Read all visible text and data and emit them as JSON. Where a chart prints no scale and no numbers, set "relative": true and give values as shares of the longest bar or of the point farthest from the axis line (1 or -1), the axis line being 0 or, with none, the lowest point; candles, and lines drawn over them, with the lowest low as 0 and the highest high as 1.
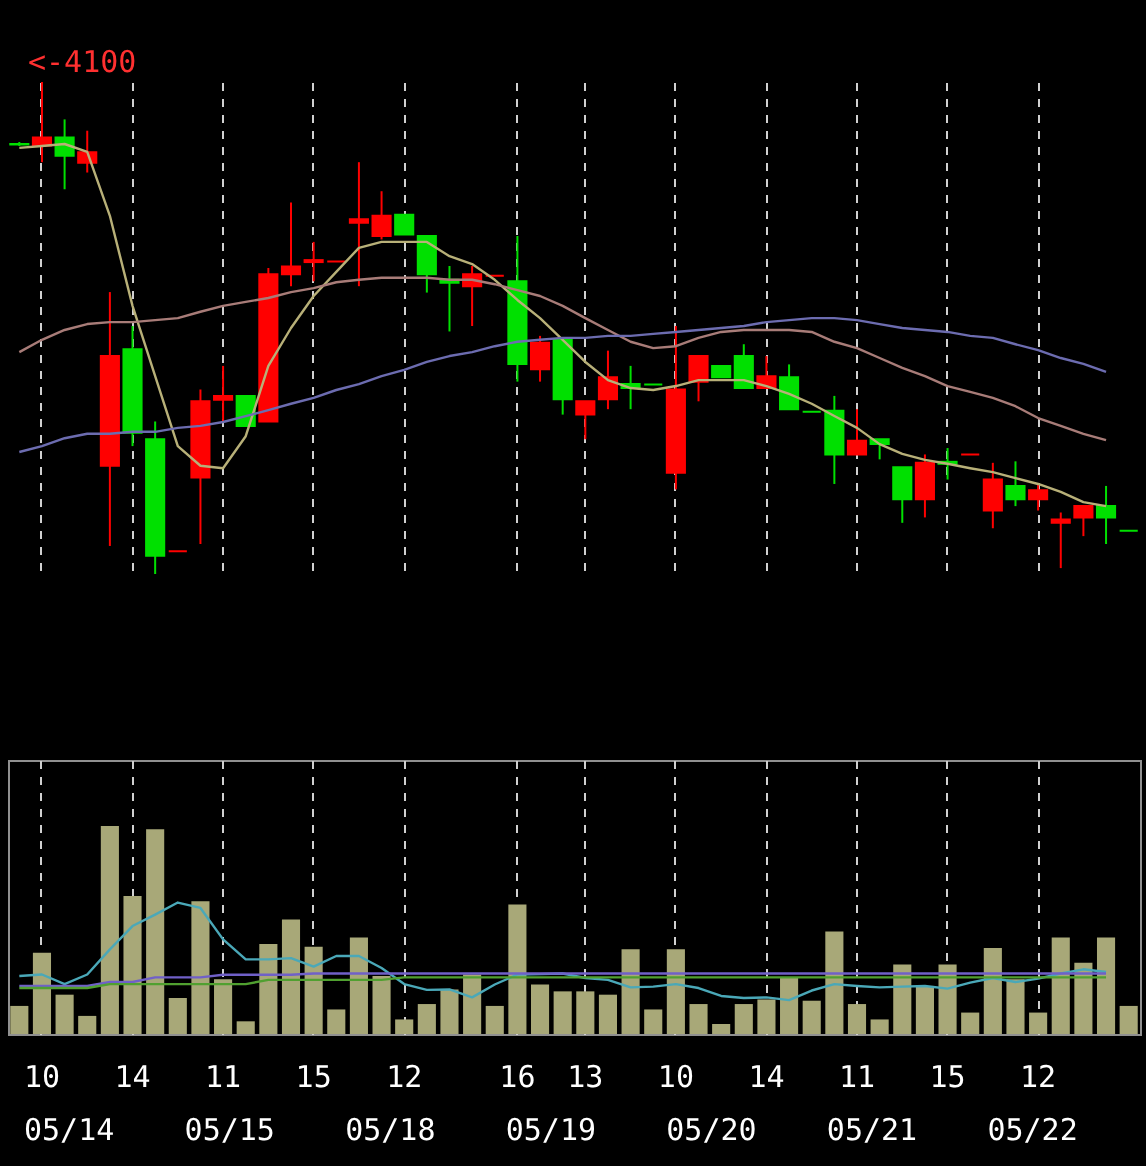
{
  "chart_data": [
    {
      "type": "candlestick",
      "relative": true,
      "grid": "x",
      "tick_labels": false,
      "categories": [
        null,
        "10",
        null,
        null,
        null,
        "14",
        null,
        null,
        null,
        "11",
        null,
        null,
        null,
        "15",
        null,
        null,
        null,
        "12",
        null,
        null,
        null,
        null,
        "16",
        null,
        null,
        "13",
        null,
        null,
        null,
        "10",
        null,
        null,
        null,
        "14",
        null,
        null,
        null,
        "11",
        null,
        null,
        null,
        "15",
        null,
        null,
        null,
        "12",
        null,
        null,
        null,
        null
      ],
      "ohlc": [
        [
          0.873,
          0.878,
          0.87,
          0.874
        ],
        [
          0.871,
          1,
          0.837,
          0.887
        ],
        [
          0.887,
          0.924,
          0.782,
          0.85
        ],
        [
          0.836,
          0.901,
          0.816,
          0.857
        ],
        [
          0.22,
          0.573,
          0.057,
          0.443
        ],
        [
          0.457,
          0.504,
          0.26,
          0.287
        ],
        [
          0.274,
          0.31,
          0,
          0.037
        ],
        [
          0.046,
          0.046,
          0.046,
          0.046
        ],
        [
          0.196,
          0.375,
          0.061,
          0.351
        ],
        [
          0.354,
          0.423,
          0.31,
          0.362
        ],
        [
          0.362,
          0.362,
          0.301,
          0.301
        ],
        [
          0.31,
          0.622,
          0.31,
          0.609
        ],
        [
          0.609,
          0.755,
          0.585,
          0.625
        ],
        [
          0.634,
          0.675,
          0.595,
          0.638
        ],
        [
          0.635,
          0.635,
          0.635,
          0.635
        ],
        [
          0.714,
          0.837,
          0.585,
          0.721
        ],
        [
          0.687,
          0.778,
          0.68,
          0.728
        ],
        [
          0.73,
          0.73,
          0.69,
          0.69
        ],
        [
          0.687,
          0.687,
          0.572,
          0.609
        ],
        [
          0.598,
          0.626,
          0.493,
          0.592
        ],
        [
          0.585,
          0.626,
          0.504,
          0.609
        ],
        [
          0.606,
          0.606,
          0.606,
          0.606
        ],
        [
          0.595,
          0.687,
          0.391,
          0.427
        ],
        [
          0.416,
          0.484,
          0.391,
          0.47
        ],
        [
          0.477,
          0.477,
          0.324,
          0.355
        ],
        [
          0.324,
          0.351,
          0.274,
          0.351
        ],
        [
          0.355,
          0.454,
          0.335,
          0.4
        ],
        [
          0.386,
          0.423,
          0.335,
          0.378
        ],
        [
          0.385,
          0.385,
          0.385,
          0.385
        ],
        [
          0.206,
          0.504,
          0.172,
          0.375
        ],
        [
          0.391,
          0.443,
          0.351,
          0.443
        ],
        [
          0.423,
          0.423,
          0.4,
          0.4
        ],
        [
          0.443,
          0.467,
          0.378,
          0.378
        ],
        [
          0.378,
          0.443,
          0.378,
          0.402
        ],
        [
          0.4,
          0.426,
          0.335,
          0.335
        ],
        [
          0.33,
          0.33,
          0.33,
          0.33
        ],
        [
          0.332,
          0.362,
          0.183,
          0.243
        ],
        [
          0.243,
          0.335,
          0.243,
          0.271
        ],
        [
          0.274,
          0.274,
          0.233,
          0.264
        ],
        [
          0.217,
          0.217,
          0.104,
          0.152
        ],
        [
          0.152,
          0.243,
          0.115,
          0.226
        ],
        [
          0.228,
          0.256,
          0.192,
          0.224
        ],
        [
          0.243,
          0.243,
          0.243,
          0.243
        ],
        [
          0.129,
          0.226,
          0.093,
          0.192
        ],
        [
          0.179,
          0.229,
          0.138,
          0.152
        ],
        [
          0.152,
          0.183,
          0.129,
          0.17
        ],
        [
          0.104,
          0.125,
          0.012,
          0.111
        ],
        [
          0.115,
          0.138,
          0.077,
          0.138
        ],
        [
          0.138,
          0.179,
          0.061,
          0.115
        ],
        [
          0.088,
          0.088,
          0.088,
          0.088
        ]
      ],
      "colors": [
        "#00e000",
        "#ff0000",
        "#00e000",
        "#ff0000",
        "#ff0000",
        "#00e000",
        "#00e000",
        "#ff0000",
        "#ff0000",
        "#ff0000",
        "#00e000",
        "#ff0000",
        "#ff0000",
        "#ff0000",
        "#ff0000",
        "#ff0000",
        "#ff0000",
        "#00e000",
        "#00e000",
        "#00e000",
        "#ff0000",
        "#ff0000",
        "#00e000",
        "#ff0000",
        "#00e000",
        "#ff0000",
        "#ff0000",
        "#00e000",
        "#00e000",
        "#ff0000",
        "#ff0000",
        "#00e000",
        "#00e000",
        "#ff0000",
        "#00e000",
        "#00e000",
        "#00e000",
        "#ff0000",
        "#00e000",
        "#00e000",
        "#ff0000",
        "#00e000",
        "#ff0000",
        "#ff0000",
        "#00e000",
        "#ff0000",
        "#ff0000",
        "#ff0000",
        "#00e000",
        "#00e000"
      ],
      "series": [
        {
          "type": "line",
          "color": "#b8b078",
          "values": [
            0.866,
            0.87,
            0.874,
            0.858,
            0.728,
            0.545,
            0.402,
            0.26,
            0.22,
            0.215,
            0.28,
            0.423,
            0.5,
            0.565,
            0.614,
            0.663,
            0.675,
            0.675,
            0.675,
            0.646,
            0.63,
            0.598,
            0.557,
            0.52,
            0.476,
            0.431,
            0.394,
            0.378,
            0.374,
            0.382,
            0.394,
            0.394,
            0.394,
            0.382,
            0.366,
            0.346,
            0.321,
            0.297,
            0.264,
            0.244,
            0.232,
            0.224,
            0.215,
            0.207,
            0.195,
            0.183,
            0.167,
            0.146,
            0.138,
            null
          ]
        },
        {
          "type": "line",
          "color": "#a87c78",
          "values": [
            0.451,
            0.476,
            0.496,
            0.508,
            0.512,
            0.512,
            0.516,
            0.52,
            0.533,
            0.545,
            0.553,
            0.561,
            0.573,
            0.581,
            0.593,
            0.598,
            0.602,
            0.602,
            0.602,
            0.598,
            0.598,
            0.589,
            0.577,
            0.565,
            0.545,
            0.52,
            0.496,
            0.472,
            0.459,
            0.463,
            0.48,
            0.492,
            0.496,
            0.496,
            0.496,
            0.492,
            0.472,
            0.459,
            0.439,
            0.419,
            0.402,
            0.382,
            0.37,
            0.358,
            0.341,
            0.317,
            0.301,
            0.285,
            0.272,
            null
          ]
        },
        {
          "type": "line",
          "color": "#6c6cb0",
          "values": [
            0.248,
            0.26,
            0.276,
            0.285,
            0.285,
            0.289,
            0.289,
            0.297,
            0.301,
            0.309,
            0.321,
            0.333,
            0.346,
            0.358,
            0.374,
            0.386,
            0.402,
            0.415,
            0.431,
            0.443,
            0.451,
            0.463,
            0.472,
            0.476,
            0.48,
            0.48,
            0.484,
            0.484,
            0.488,
            0.492,
            0.496,
            0.5,
            0.504,
            0.512,
            0.516,
            0.52,
            0.52,
            0.516,
            0.508,
            0.5,
            0.496,
            0.492,
            0.484,
            0.48,
            0.467,
            0.455,
            0.439,
            0.427,
            0.411,
            null
          ]
        }
      ],
      "annotations": [
        "<-4100"
      ]
    },
    {
      "type": "bar",
      "relative": true,
      "grid": "x",
      "tick_labels": "x",
      "categories": [
        null,
        "10",
        null,
        null,
        null,
        "14",
        null,
        null,
        null,
        "11",
        null,
        null,
        null,
        "15",
        null,
        null,
        null,
        "12",
        null,
        null,
        null,
        null,
        "16",
        null,
        null,
        "13",
        null,
        null,
        null,
        "10",
        null,
        null,
        null,
        "14",
        null,
        null,
        null,
        "11",
        null,
        null,
        null,
        "15",
        null,
        null,
        null,
        "12",
        null,
        null,
        null,
        null
      ],
      "series": [
        {
          "type": "bar",
          "color": "#a8a878",
          "values": [
            0.135,
            0.391,
            0.189,
            0.087,
            1,
            0.663,
            0.984,
            0.173,
            0.638,
            0.263,
            0.061,
            0.433,
            0.551,
            0.42,
            0.118,
            0.464,
            0.279,
            0.07,
            0.144,
            0.214,
            0.286,
            0.135,
            0.622,
            0.238,
            0.205,
            0.205,
            0.189,
            0.407,
            0.118,
            0.407,
            0.144,
            0.048,
            0.144,
            0.166,
            0.272,
            0.16,
            0.493,
            0.144,
            0.07,
            0.334,
            0.231,
            0.334,
            0.103,
            0.413,
            0.263,
            0.103,
            0.464,
            0.343,
            0.464,
            0.135
          ]
        },
        {
          "type": "line",
          "color": "#4aa8b8",
          "values": [
            0.279,
            0.286,
            0.24,
            0.286,
            0.407,
            0.519,
            0.574,
            0.632,
            0.606,
            0.455,
            0.359,
            0.359,
            0.365,
            0.324,
            0.375,
            0.375,
            0.317,
            0.24,
            0.212,
            0.214,
            0.176,
            0.238,
            0.286,
            0.288,
            0.291,
            0.269,
            0.26,
            0.224,
            0.228,
            0.24,
            0.221,
            0.183,
            0.173,
            0.176,
            0.163,
            0.209,
            0.24,
            0.231,
            0.224,
            0.228,
            0.231,
            0.218,
            0.247,
            0.269,
            0.25,
            0.266,
            0.291,
            0.311,
            0.298,
            null
          ]
        },
        {
          "type": "line",
          "color": "#7060c8",
          "values": [
            0.231,
            0.231,
            0.231,
            0.231,
            0.25,
            0.25,
            0.272,
            0.272,
            0.272,
            0.285,
            0.285,
            0.285,
            0.285,
            0.291,
            0.291,
            0.291,
            0.291,
            0.291,
            0.291,
            0.291,
            0.291,
            0.291,
            0.291,
            0.291,
            0.291,
            0.291,
            0.291,
            0.291,
            0.291,
            0.291,
            0.291,
            0.291,
            0.291,
            0.291,
            0.291,
            0.291,
            0.291,
            0.291,
            0.291,
            0.291,
            0.291,
            0.291,
            0.291,
            0.291,
            0.291,
            0.291,
            0.291,
            0.291,
            0.291,
            null
          ]
        },
        {
          "type": "line",
          "color": "#50a030",
          "values": [
            0.221,
            0.221,
            0.221,
            0.221,
            0.24,
            0.24,
            0.24,
            0.24,
            0.24,
            0.24,
            0.24,
            0.26,
            0.26,
            0.26,
            0.26,
            0.26,
            0.26,
            0.272,
            0.272,
            0.272,
            0.272,
            0.272,
            0.272,
            0.272,
            0.272,
            0.272,
            0.272,
            0.272,
            0.272,
            0.272,
            0.272,
            0.272,
            0.272,
            0.272,
            0.272,
            0.272,
            0.272,
            0.272,
            0.272,
            0.272,
            0.272,
            0.272,
            0.272,
            0.272,
            0.272,
            0.272,
            0.272,
            0.272,
            0.272,
            null
          ]
        }
      ],
      "annotations": [
        "05/14",
        "05/15",
        "05/18",
        "05/19",
        "05/20",
        "05/21",
        "05/22"
      ]
    }
  ]
}
